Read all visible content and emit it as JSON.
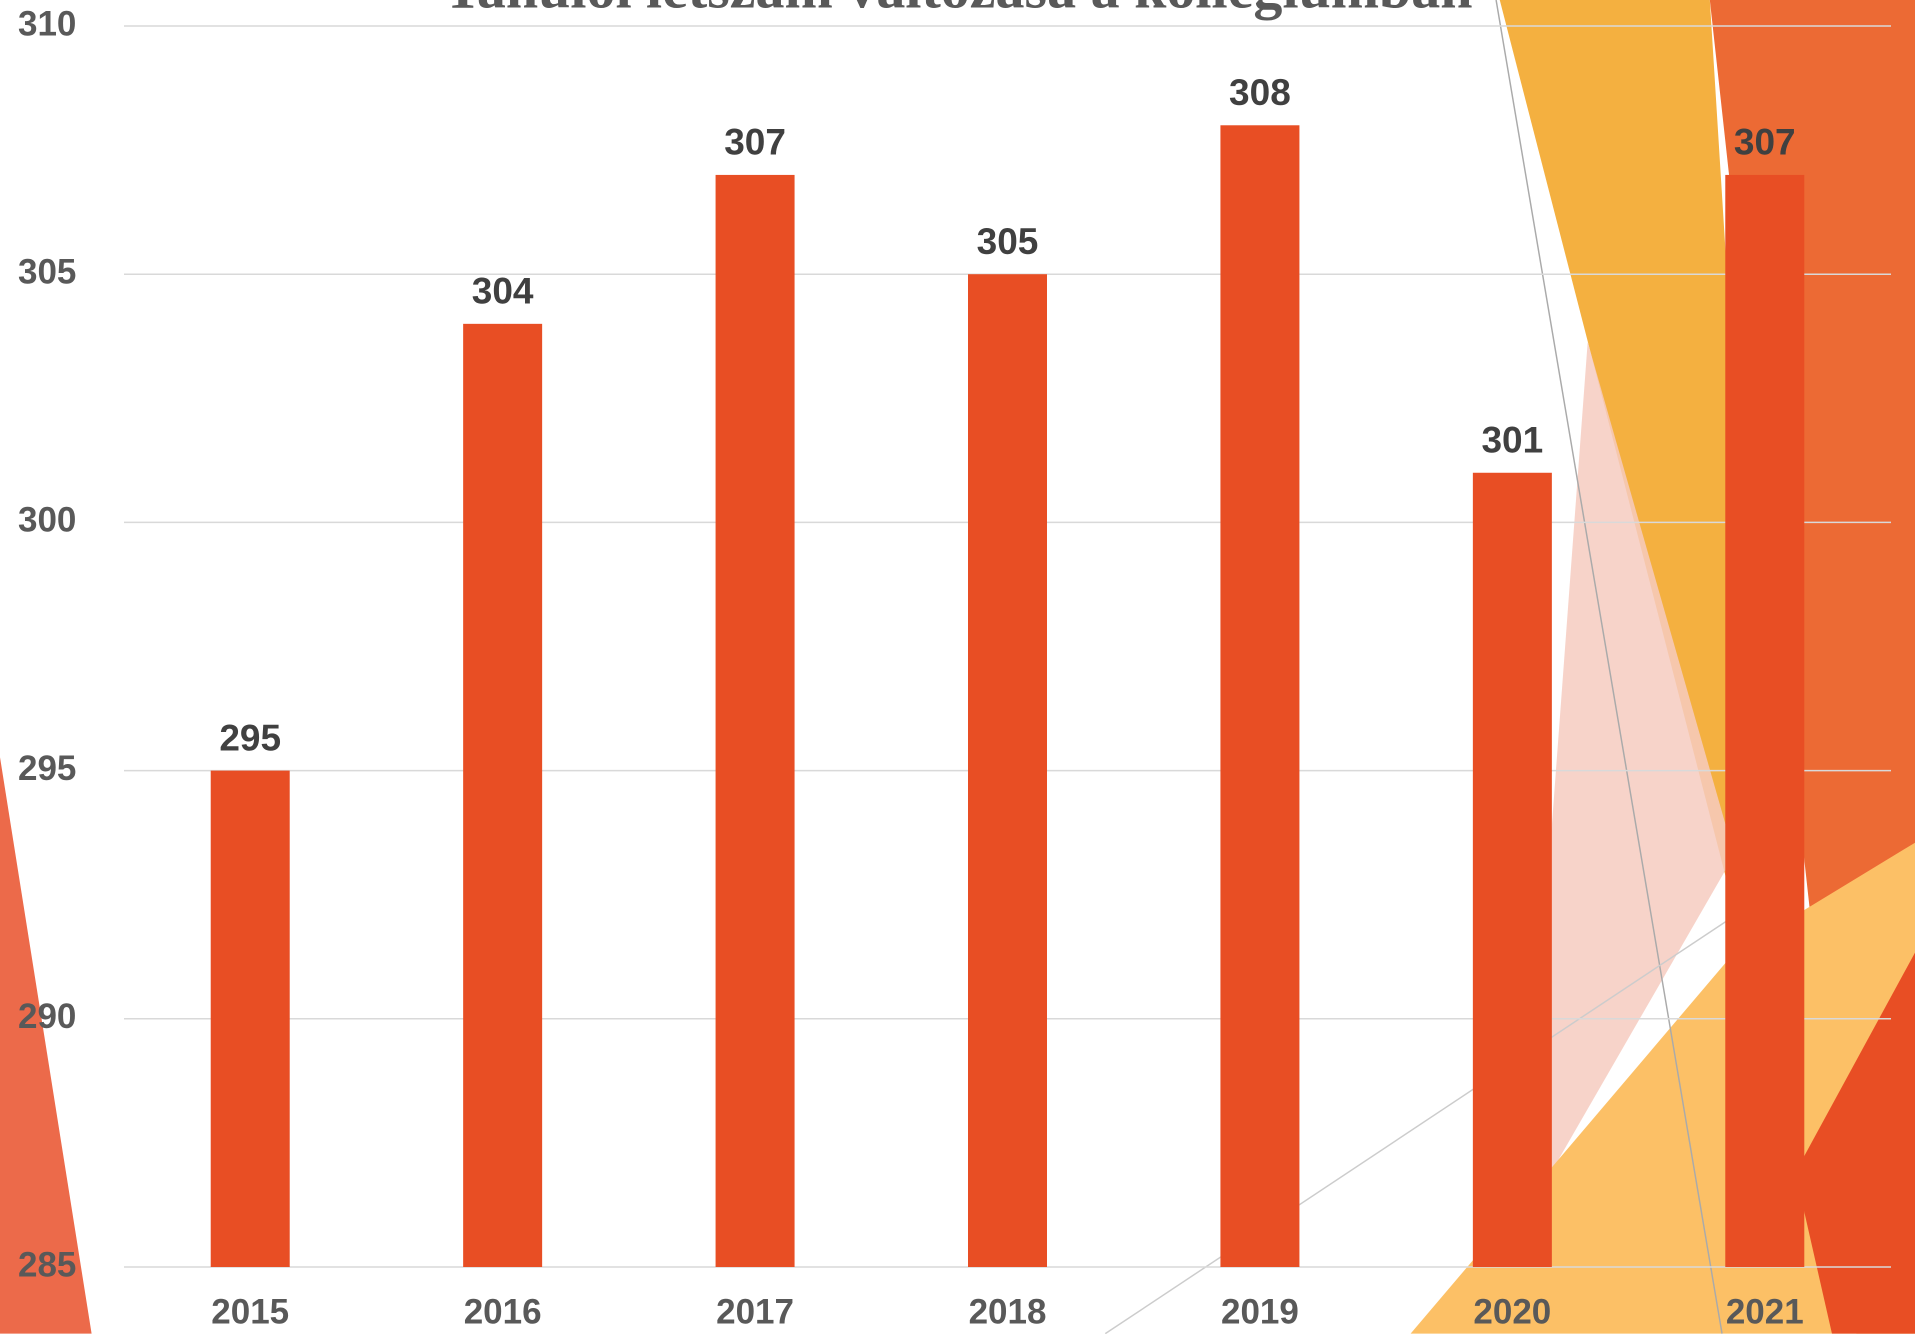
{
  "chart_data": {
    "type": "bar",
    "title": "Tanulói létszám változása a kollégiumban",
    "categories": [
      "2015",
      "2016",
      "2017",
      "2018",
      "2019",
      "2020",
      "2021"
    ],
    "values": [
      295,
      304,
      307,
      305,
      308,
      301,
      307
    ],
    "color": "#e84e24",
    "ylim": [
      285,
      310
    ],
    "yticks": [
      285,
      290,
      295,
      300,
      305,
      310
    ],
    "grid": true
  }
}
